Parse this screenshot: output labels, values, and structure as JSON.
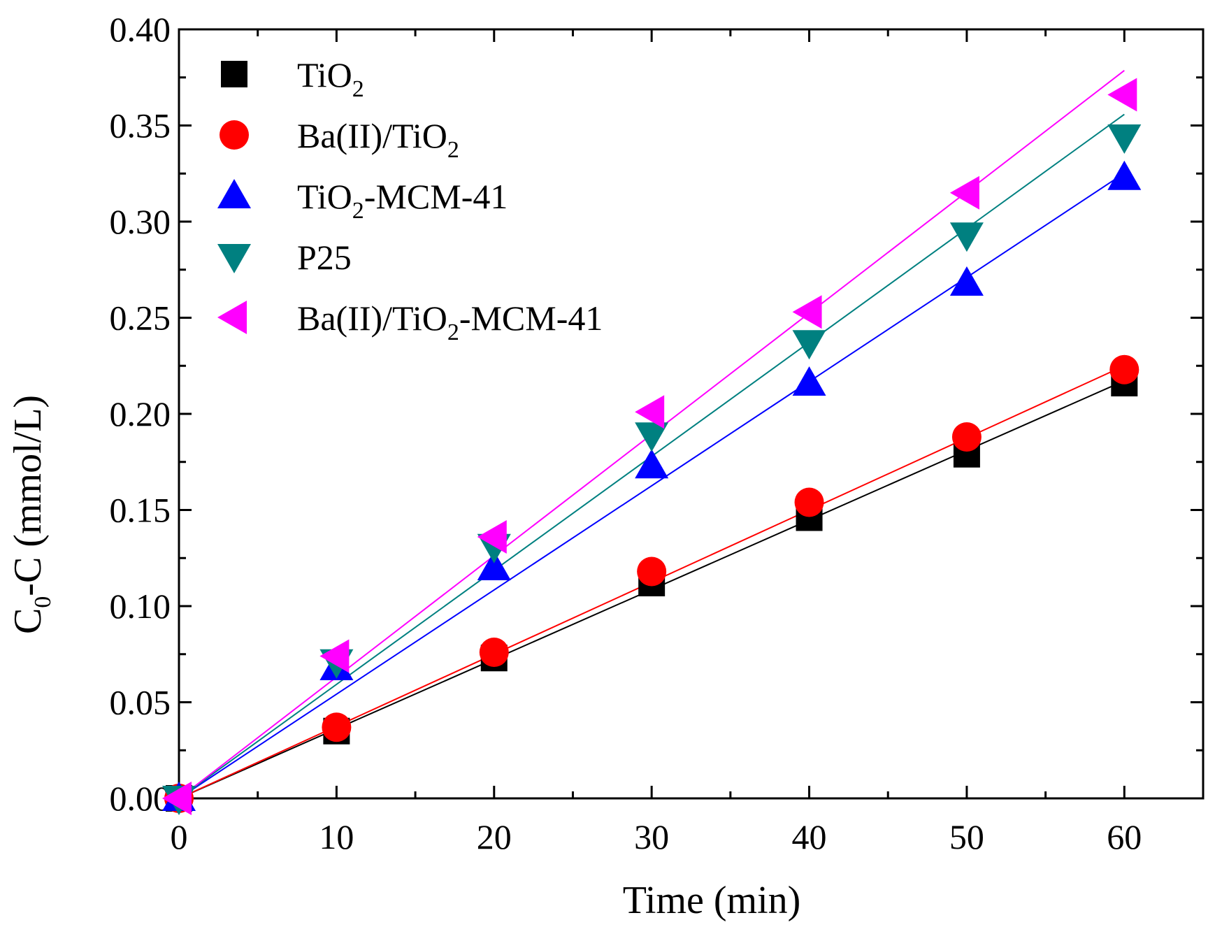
{
  "chart_data": {
    "type": "scatter",
    "title": "",
    "xlabel": "Time (min)",
    "ylabel": {
      "main": "C",
      "sub": "0",
      "rest": "-C (mmol/L)"
    },
    "xlim": [
      0,
      65
    ],
    "ylim": [
      0,
      0.4
    ],
    "x_ticks": [
      0,
      10,
      20,
      30,
      40,
      50,
      60
    ],
    "x_tick_labels": [
      "0",
      "10",
      "20",
      "30",
      "40",
      "50",
      "60"
    ],
    "y_ticks": [
      0,
      0.05,
      0.1,
      0.15,
      0.2,
      0.25,
      0.3,
      0.35,
      0.4
    ],
    "y_tick_labels": [
      "0.00",
      "0.05",
      "0.10",
      "0.15",
      "0.20",
      "0.25",
      "0.30",
      "0.35",
      "0.40"
    ],
    "legend_position": "top-left",
    "x": [
      0,
      10,
      20,
      30,
      40,
      50,
      60
    ],
    "series": [
      {
        "name": "TiO2",
        "label": [
          {
            "t": "TiO"
          },
          {
            "t": "2",
            "sub": true
          }
        ],
        "marker": "square",
        "color": "#000000",
        "line_color": "#000000",
        "values": [
          0.0,
          0.035,
          0.073,
          0.112,
          0.146,
          0.179,
          0.216
        ],
        "fit_slope": 0.00362
      },
      {
        "name": "Ba(II)/TiO2",
        "label": [
          {
            "t": "Ba(II)/TiO"
          },
          {
            "t": "2",
            "sub": true
          }
        ],
        "marker": "circle",
        "color": "#ff0000",
        "line_color": "#ff0000",
        "values": [
          0.0,
          0.037,
          0.076,
          0.118,
          0.154,
          0.188,
          0.223
        ],
        "fit_slope": 0.00375
      },
      {
        "name": "TiO2-MCM-41",
        "label": [
          {
            "t": "TiO"
          },
          {
            "t": "2",
            "sub": true
          },
          {
            "t": "-MCM-41"
          }
        ],
        "marker": "triangle-up",
        "color": "#0000ff",
        "line_color": "#0000ff",
        "values": [
          0.0,
          0.068,
          0.12,
          0.173,
          0.216,
          0.268,
          0.323
        ],
        "fit_slope": 0.00542
      },
      {
        "name": "P25",
        "label": [
          {
            "t": "P25"
          }
        ],
        "marker": "triangle-down",
        "color": "#008080",
        "line_color": "#008080",
        "values": [
          0.0,
          0.071,
          0.131,
          0.189,
          0.237,
          0.293,
          0.344
        ],
        "fit_slope": 0.00593
      },
      {
        "name": "Ba(II)/TiO2-MCM-41",
        "label": [
          {
            "t": "Ba(II)/TiO"
          },
          {
            "t": "2",
            "sub": true
          },
          {
            "t": "-MCM-41"
          }
        ],
        "marker": "triangle-left",
        "color": "#ff00ff",
        "line_color": "#ff00ff",
        "values": [
          0.0,
          0.074,
          0.136,
          0.201,
          0.253,
          0.315,
          0.366
        ],
        "fit_slope": 0.00631
      }
    ]
  }
}
